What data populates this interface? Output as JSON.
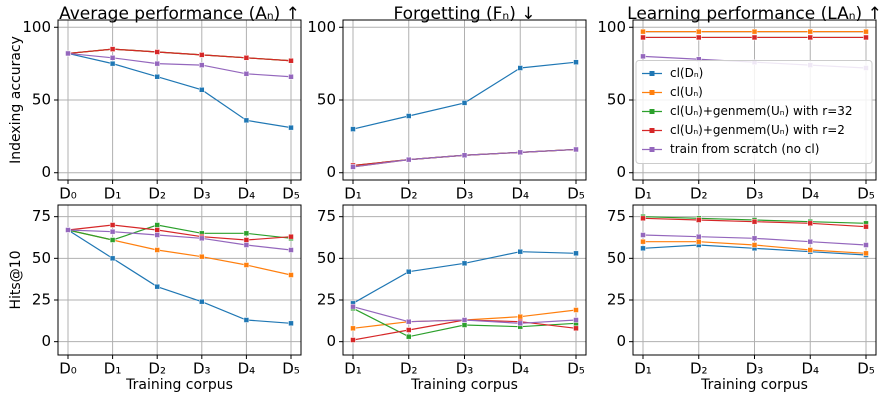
{
  "chart_data": [
    {
      "type": "line",
      "title": "Average performance (Aₙ) ↑",
      "ylabel": "Indexing accuracy",
      "categories": [
        "D₀",
        "D₁",
        "D₂",
        "D₃",
        "D₄",
        "D₅"
      ],
      "ylim": [
        -5,
        105
      ],
      "yticks": [
        0,
        50,
        100
      ],
      "grid": true,
      "series": [
        {
          "color": "#1f77b4",
          "values": [
            82,
            75,
            66,
            57,
            36,
            31
          ]
        },
        {
          "color": "#ff7f0e",
          "values": [
            82,
            85,
            83,
            81,
            79,
            77
          ]
        },
        {
          "color": "#2ca02c",
          "values": [
            82,
            85,
            83,
            81,
            79,
            77
          ]
        },
        {
          "color": "#d62728",
          "values": [
            82,
            85,
            83,
            81,
            79,
            77
          ]
        },
        {
          "color": "#9467bd",
          "values": [
            82,
            79,
            75,
            74,
            68,
            66
          ]
        }
      ]
    },
    {
      "type": "line",
      "title": "Forgetting (Fₙ) ↓",
      "categories": [
        "D₁",
        "D₂",
        "D₃",
        "D₄",
        "D₅"
      ],
      "ylim": [
        -5,
        105
      ],
      "yticks": [
        0,
        50,
        100
      ],
      "grid": true,
      "series": [
        {
          "color": "#1f77b4",
          "values": [
            30,
            39,
            48,
            72,
            76
          ]
        },
        {
          "color": "#ff7f0e",
          "values": [
            4,
            9,
            12,
            14,
            16
          ]
        },
        {
          "color": "#2ca02c",
          "values": [
            5,
            9,
            12,
            14,
            16
          ]
        },
        {
          "color": "#d62728",
          "values": [
            5,
            9,
            12,
            14,
            16
          ]
        },
        {
          "color": "#9467bd",
          "values": [
            4,
            9,
            12,
            14,
            16
          ]
        }
      ]
    },
    {
      "type": "line",
      "title": "Learning performance (LAₙ) ↑",
      "categories": [
        "D₁",
        "D₂",
        "D₃",
        "D₄",
        "D₅"
      ],
      "ylim": [
        -5,
        105
      ],
      "yticks": [
        0,
        50,
        100
      ],
      "grid": true,
      "legend": "center right",
      "series": [
        {
          "name": "cl(Dₙ)",
          "color": "#1f77b4",
          "values": [
            97,
            97,
            97,
            97,
            97
          ]
        },
        {
          "name": "cl(Uₙ)",
          "color": "#ff7f0e",
          "values": [
            97,
            97,
            97,
            97,
            97
          ]
        },
        {
          "name": "cl(Uₙ)+genmem(Uₙ) with r=32",
          "color": "#2ca02c",
          "values": [
            93,
            93,
            93,
            93,
            93
          ]
        },
        {
          "name": "cl(Uₙ)+genmem(Uₙ) with r=2",
          "color": "#d62728",
          "values": [
            93,
            93,
            93,
            93,
            93
          ]
        },
        {
          "name": "train from scratch (no cl)",
          "color": "#9467bd",
          "values": [
            80,
            78,
            76,
            74,
            72
          ]
        }
      ]
    },
    {
      "type": "line",
      "ylabel": "Hits@10",
      "xlabel": "Training corpus",
      "categories": [
        "D₀",
        "D₁",
        "D₂",
        "D₃",
        "D₄",
        "D₅"
      ],
      "ylim": [
        -8,
        82
      ],
      "yticks": [
        0,
        25,
        50,
        75
      ],
      "grid": true,
      "series": [
        {
          "color": "#1f77b4",
          "values": [
            67,
            50,
            33,
            24,
            13,
            11
          ]
        },
        {
          "color": "#ff7f0e",
          "values": [
            67,
            61,
            55,
            51,
            46,
            40
          ]
        },
        {
          "color": "#2ca02c",
          "values": [
            67,
            61,
            70,
            65,
            65,
            62
          ]
        },
        {
          "color": "#d62728",
          "values": [
            67,
            70,
            67,
            63,
            61,
            63
          ]
        },
        {
          "color": "#9467bd",
          "values": [
            67,
            66,
            64,
            62,
            58,
            55
          ]
        }
      ]
    },
    {
      "type": "line",
      "xlabel": "Training corpus",
      "categories": [
        "D₁",
        "D₂",
        "D₃",
        "D₄",
        "D₅"
      ],
      "ylim": [
        -8,
        82
      ],
      "yticks": [
        0,
        25,
        50,
        75
      ],
      "grid": true,
      "series": [
        {
          "color": "#1f77b4",
          "values": [
            23,
            42,
            47,
            54,
            53
          ]
        },
        {
          "color": "#ff7f0e",
          "values": [
            8,
            12,
            13,
            15,
            19
          ]
        },
        {
          "color": "#2ca02c",
          "values": [
            20,
            3,
            10,
            9,
            11
          ]
        },
        {
          "color": "#d62728",
          "values": [
            1,
            7,
            13,
            12,
            8
          ]
        },
        {
          "color": "#9467bd",
          "values": [
            21,
            12,
            13,
            11,
            13
          ]
        }
      ]
    },
    {
      "type": "line",
      "xlabel": "Training corpus",
      "categories": [
        "D₁",
        "D₂",
        "D₃",
        "D₄",
        "D₅"
      ],
      "ylim": [
        -8,
        82
      ],
      "yticks": [
        0,
        25,
        50,
        75
      ],
      "grid": true,
      "series": [
        {
          "color": "#1f77b4",
          "values": [
            56,
            58,
            56,
            54,
            52
          ]
        },
        {
          "color": "#ff7f0e",
          "values": [
            60,
            60,
            58,
            55,
            53
          ]
        },
        {
          "color": "#2ca02c",
          "values": [
            75,
            74,
            73,
            72,
            71
          ]
        },
        {
          "color": "#d62728",
          "values": [
            74,
            73,
            72,
            71,
            69
          ]
        },
        {
          "color": "#9467bd",
          "values": [
            64,
            63,
            62,
            60,
            58
          ]
        }
      ]
    }
  ]
}
